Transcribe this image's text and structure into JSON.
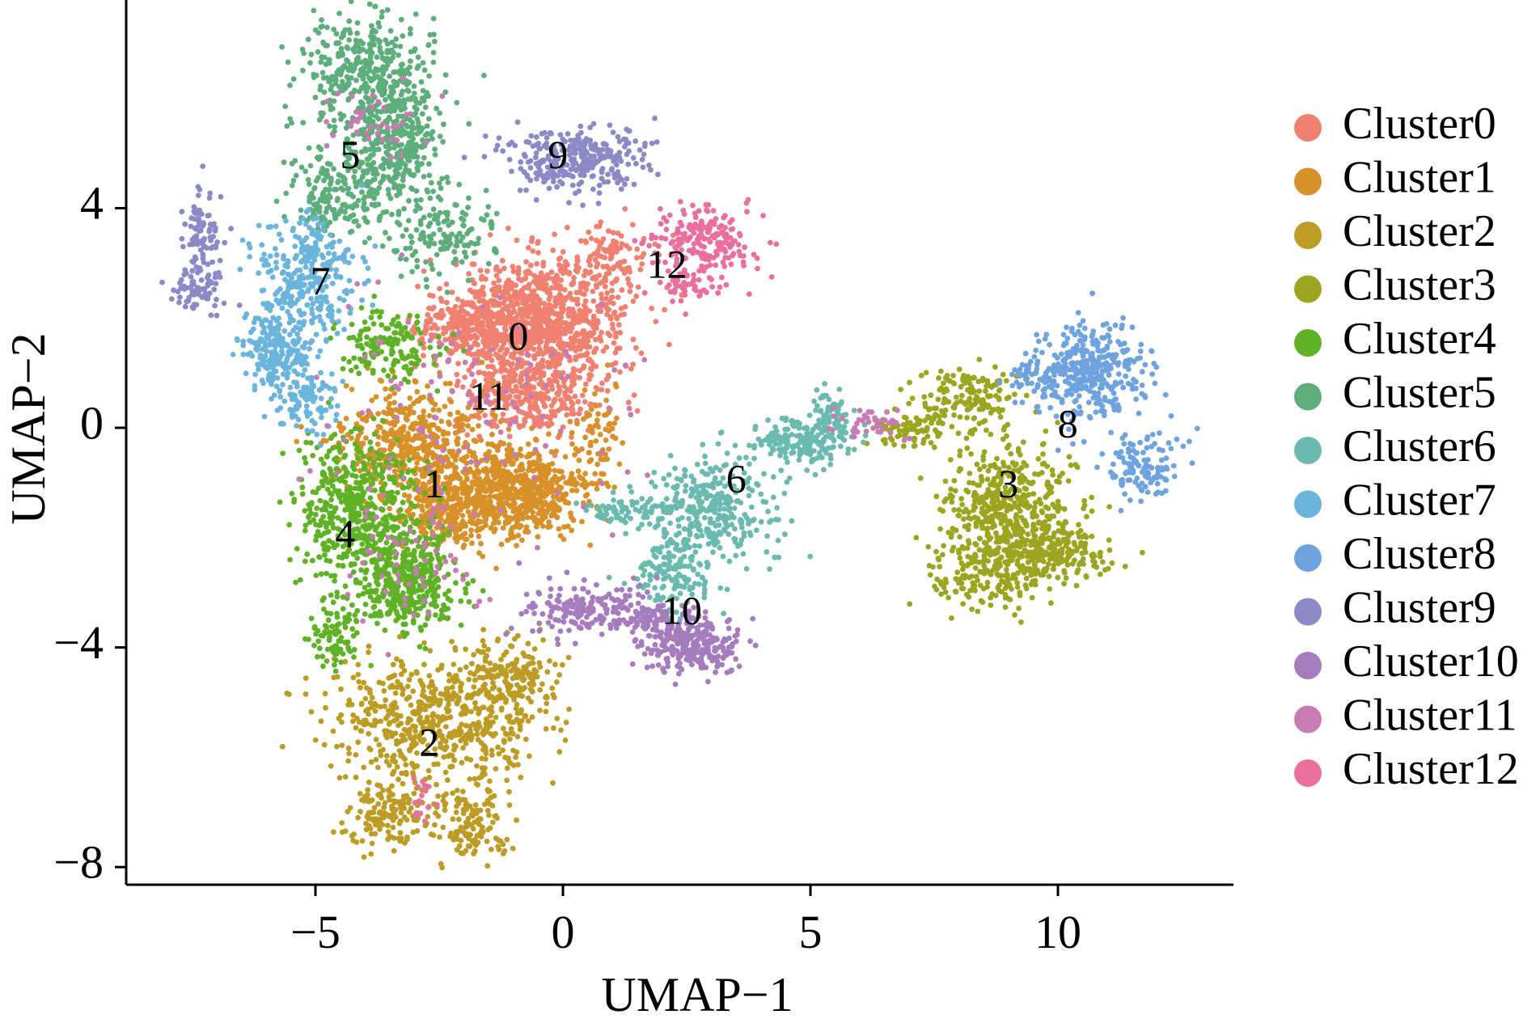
{
  "chart_data": {
    "type": "scatter",
    "xlabel": "UMAP−1",
    "ylabel": "UMAP−2",
    "xlim": [
      -9,
      13.5
    ],
    "ylim": [
      -8.3,
      7.8
    ],
    "x_ticks": [
      -5,
      0,
      5,
      10
    ],
    "y_ticks": [
      -8,
      -4,
      0,
      4
    ],
    "x_tick_labels": [
      "−5",
      "0",
      "5",
      "10"
    ],
    "y_tick_labels": [
      "−8",
      "−4",
      "0",
      "4"
    ],
    "grid": false,
    "legend": "right",
    "clusters": [
      {
        "name": "Cluster0",
        "label": "0",
        "color": "#F08070",
        "label_pos": [
          -0.9,
          1.6
        ],
        "regions": [
          [
            -0.5,
            2.0,
            1.5,
            0.9,
            900
          ],
          [
            -1.8,
            1.8,
            0.9,
            0.5,
            250
          ],
          [
            -0.6,
            0.6,
            1.3,
            0.6,
            350
          ],
          [
            0.9,
            3.0,
            0.7,
            0.6,
            120
          ]
        ]
      },
      {
        "name": "Cluster1",
        "label": "1",
        "color": "#D89028",
        "label_pos": [
          -2.6,
          -1.1
        ],
        "regions": [
          [
            -1.0,
            -1.2,
            1.2,
            0.7,
            600
          ],
          [
            -3.0,
            -0.3,
            1.2,
            0.9,
            500
          ],
          [
            -2.3,
            -1.5,
            0.8,
            0.6,
            250
          ],
          [
            0.6,
            -0.3,
            0.4,
            0.8,
            80
          ]
        ]
      },
      {
        "name": "Cluster2",
        "label": "2",
        "color": "#BC9C25",
        "label_pos": [
          -2.7,
          -5.8
        ],
        "regions": [
          [
            -2.5,
            -5.3,
            1.8,
            0.9,
            600
          ],
          [
            -3.5,
            -7.0,
            0.7,
            0.5,
            150
          ],
          [
            -1.8,
            -7.2,
            0.7,
            0.5,
            120
          ],
          [
            -1.0,
            -4.5,
            0.8,
            0.5,
            150
          ]
        ]
      },
      {
        "name": "Cluster3",
        "label": "3",
        "color": "#9CA520",
        "label_pos": [
          9.0,
          -1.1
        ],
        "regions": [
          [
            9.0,
            -1.5,
            1.1,
            1.0,
            500
          ],
          [
            8.2,
            0.5,
            0.8,
            0.5,
            150
          ],
          [
            10.0,
            -2.3,
            1.0,
            0.4,
            180
          ],
          [
            7.0,
            0.0,
            0.6,
            0.3,
            80
          ],
          [
            8.6,
            -2.7,
            1.0,
            0.5,
            150
          ]
        ]
      },
      {
        "name": "Cluster4",
        "label": "4",
        "color": "#5FB225",
        "label_pos": [
          -4.4,
          -2.0
        ],
        "regions": [
          [
            -4.2,
            -1.5,
            1.0,
            1.2,
            500
          ],
          [
            -3.2,
            -2.8,
            0.9,
            0.8,
            400
          ],
          [
            -3.5,
            1.5,
            0.9,
            0.5,
            150
          ],
          [
            -4.6,
            -3.8,
            0.4,
            0.5,
            80
          ]
        ]
      },
      {
        "name": "Cluster5",
        "label": "5",
        "color": "#5EAE7C",
        "label_pos": [
          -4.3,
          4.9
        ],
        "regions": [
          [
            -4.0,
            6.4,
            1.1,
            0.9,
            400
          ],
          [
            -3.4,
            5.2,
            0.8,
            0.8,
            300
          ],
          [
            -4.5,
            4.3,
            0.8,
            0.6,
            200
          ],
          [
            -2.5,
            3.5,
            1.0,
            0.6,
            150
          ]
        ]
      },
      {
        "name": "Cluster6",
        "label": "6",
        "color": "#6ABAB0",
        "label_pos": [
          3.5,
          -1.0
        ],
        "regions": [
          [
            3.0,
            -1.5,
            1.0,
            0.8,
            300
          ],
          [
            4.8,
            -0.3,
            0.9,
            0.4,
            200
          ],
          [
            2.2,
            -2.6,
            0.6,
            0.6,
            150
          ],
          [
            5.4,
            0.3,
            0.3,
            0.3,
            60
          ],
          [
            1.2,
            -1.5,
            0.8,
            0.2,
            80
          ]
        ]
      },
      {
        "name": "Cluster7",
        "label": "7",
        "color": "#6BB5DC",
        "label_pos": [
          -4.9,
          2.6
        ],
        "regions": [
          [
            -5.2,
            2.8,
            0.9,
            0.9,
            300
          ],
          [
            -5.8,
            1.4,
            0.6,
            0.6,
            200
          ],
          [
            -5.2,
            0.5,
            0.6,
            0.5,
            100
          ]
        ]
      },
      {
        "name": "Cluster8",
        "label": "8",
        "color": "#6EA3E0",
        "label_pos": [
          10.2,
          0.0
        ],
        "regions": [
          [
            10.6,
            1.0,
            0.9,
            0.8,
            350
          ],
          [
            11.7,
            -0.7,
            0.7,
            0.5,
            120
          ],
          [
            9.6,
            1.0,
            0.6,
            0.3,
            60
          ]
        ]
      },
      {
        "name": "Cluster9",
        "label": "9",
        "color": "#8C8AC6",
        "label_pos": [
          -0.1,
          4.9
        ],
        "regions": [
          [
            0.2,
            4.9,
            1.2,
            0.5,
            300
          ],
          [
            -7.3,
            3.4,
            0.3,
            0.8,
            100
          ],
          [
            -7.4,
            2.5,
            0.5,
            0.3,
            60
          ]
        ]
      },
      {
        "name": "Cluster10",
        "label": "10",
        "color": "#A57CBE",
        "label_pos": [
          2.4,
          -3.4
        ],
        "regions": [
          [
            2.6,
            -4.0,
            0.8,
            0.4,
            250
          ],
          [
            0.6,
            -3.3,
            1.2,
            0.4,
            200
          ],
          [
            1.9,
            -3.5,
            0.6,
            0.3,
            80
          ]
        ]
      },
      {
        "name": "Cluster11",
        "label": "11",
        "color": "#C77BB3",
        "label_pos": [
          -1.5,
          0.5
        ],
        "regions": [
          [
            -1.5,
            0.3,
            3.0,
            1.8,
            120
          ],
          [
            6.2,
            0.0,
            0.6,
            0.3,
            40
          ],
          [
            -3.8,
            5.6,
            0.8,
            0.6,
            40
          ],
          [
            -3.0,
            -2.5,
            1.2,
            1.2,
            60
          ]
        ]
      },
      {
        "name": "Cluster12",
        "label": "12",
        "color": "#EA6F9C",
        "label_pos": [
          2.1,
          2.9
        ],
        "regions": [
          [
            2.8,
            3.4,
            0.9,
            0.5,
            200
          ],
          [
            2.5,
            2.6,
            0.5,
            0.4,
            50
          ],
          [
            -2.9,
            -6.8,
            0.3,
            0.4,
            20
          ]
        ]
      }
    ]
  }
}
